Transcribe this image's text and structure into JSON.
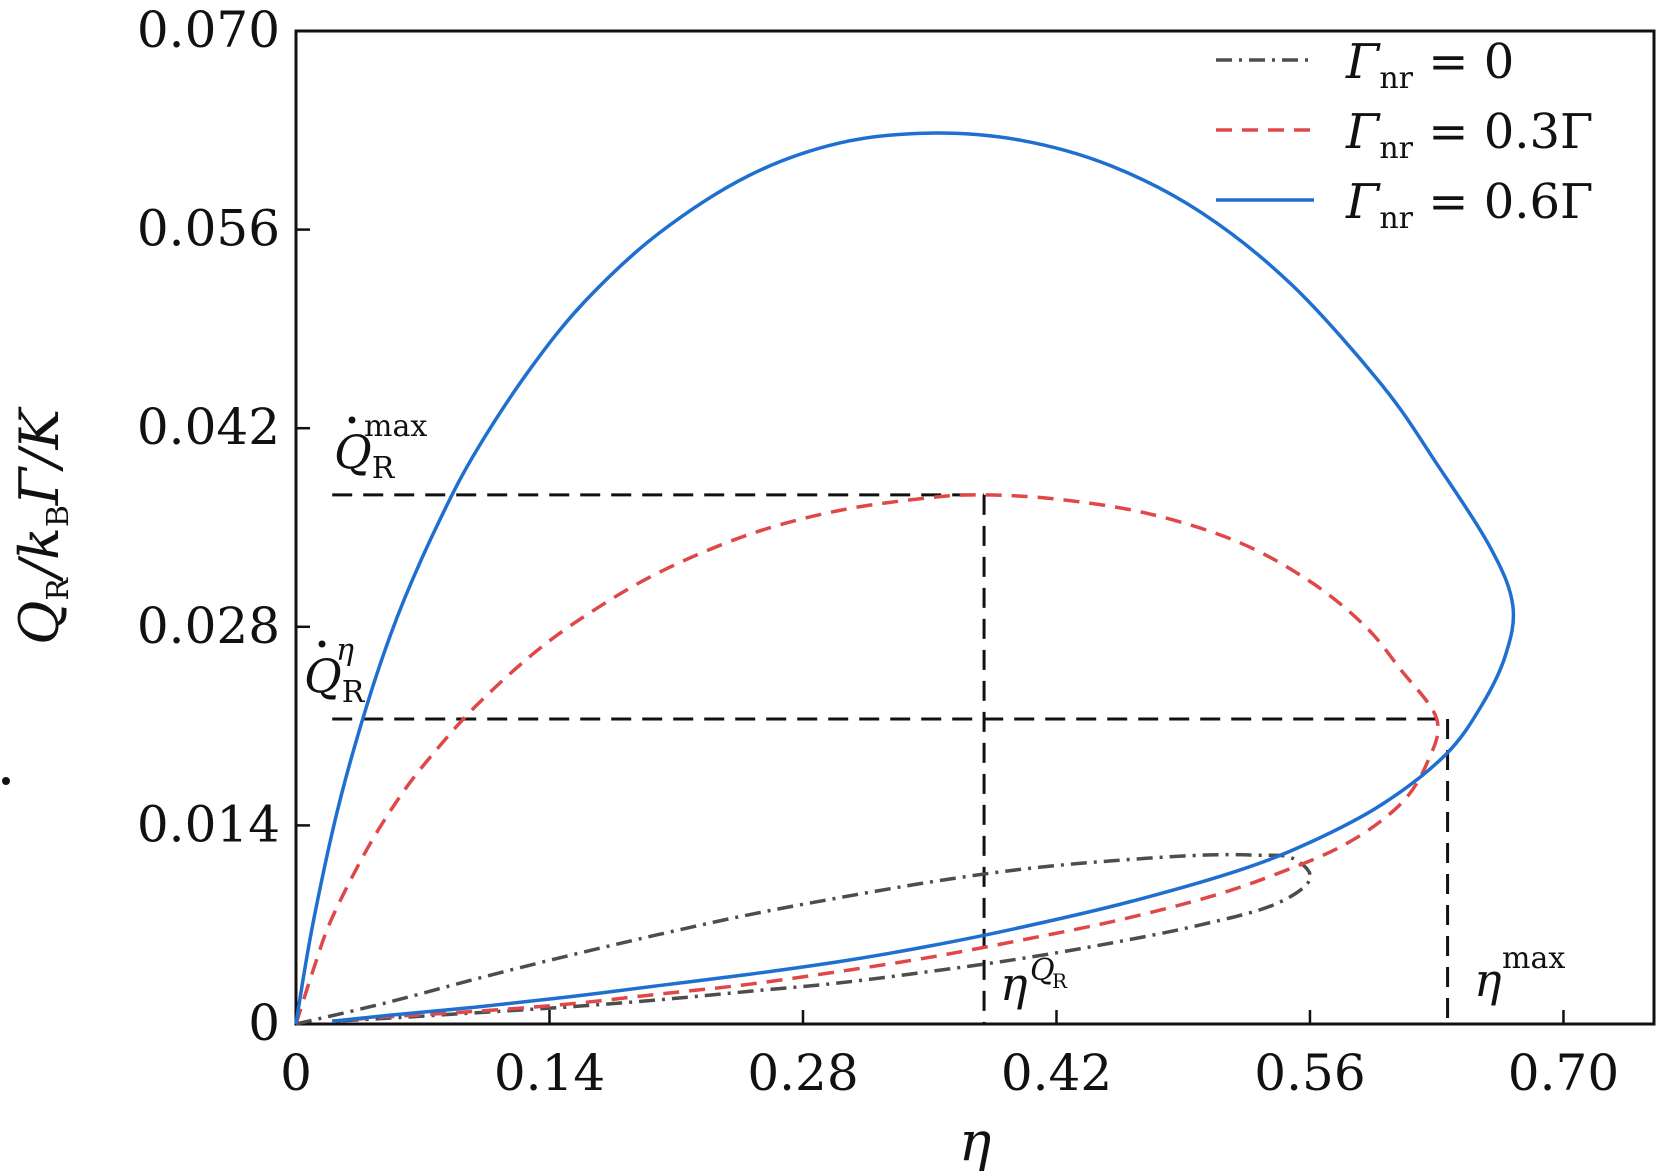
{
  "chart_data": {
    "type": "line",
    "title": "",
    "xlabel": "η",
    "ylabel": {
      "main": "Q",
      "sub": "R",
      "rest": "/k",
      "sub2": "B",
      "tail": "Γ/K"
    },
    "xlim": [
      0,
      0.75
    ],
    "ylim": [
      0,
      0.07
    ],
    "x_ticks": [
      0,
      0.14,
      0.28,
      0.42,
      0.56,
      0.7
    ],
    "x_tick_labels": [
      "0",
      "0.14",
      "0.28",
      "0.42",
      "0.56",
      "0.70"
    ],
    "y_ticks": [
      0,
      0.014,
      0.028,
      0.042,
      0.056,
      0.07
    ],
    "y_tick_labels": [
      "0",
      "0.014",
      "0.028",
      "0.042",
      "0.056",
      "0.070"
    ],
    "legend_position": "top-right",
    "series": [
      {
        "name": "Γnr = 0",
        "label": {
          "main": "Γ",
          "sub": "nr",
          "rest": " = 0"
        },
        "color": "#4d4d4d",
        "style": "dashdot",
        "points": [
          [
            0,
            0
          ],
          [
            0.05,
            0.0015
          ],
          [
            0.1,
            0.0032
          ],
          [
            0.15,
            0.0048
          ],
          [
            0.2,
            0.0063
          ],
          [
            0.25,
            0.0077
          ],
          [
            0.3,
            0.0089
          ],
          [
            0.35,
            0.01
          ],
          [
            0.4,
            0.0109
          ],
          [
            0.45,
            0.0115
          ],
          [
            0.5,
            0.0119
          ],
          [
            0.53,
            0.0119
          ],
          [
            0.55,
            0.0117
          ],
          [
            0.56,
            0.0102
          ],
          [
            0.54,
            0.0084
          ],
          [
            0.5,
            0.007
          ],
          [
            0.45,
            0.0057
          ],
          [
            0.4,
            0.0046
          ],
          [
            0.35,
            0.0037
          ],
          [
            0.3,
            0.0029
          ],
          [
            0.25,
            0.0023
          ],
          [
            0.2,
            0.0017
          ],
          [
            0.15,
            0.0012
          ],
          [
            0.1,
            0.0008
          ],
          [
            0.05,
            0.0004
          ],
          [
            0.02,
            0.0002
          ]
        ]
      },
      {
        "name": "Γnr = 0.3Γ",
        "label": {
          "main": "Γ",
          "sub": "nr",
          "rest": " = 0.3Γ"
        },
        "color": "#e04848",
        "style": "dashed",
        "points": [
          [
            0,
            0
          ],
          [
            0.01,
            0.004
          ],
          [
            0.02,
            0.0075
          ],
          [
            0.04,
            0.0125
          ],
          [
            0.06,
            0.0165
          ],
          [
            0.08,
            0.0197
          ],
          [
            0.1,
            0.0225
          ],
          [
            0.13,
            0.026
          ],
          [
            0.16,
            0.0288
          ],
          [
            0.2,
            0.0318
          ],
          [
            0.25,
            0.0345
          ],
          [
            0.3,
            0.0362
          ],
          [
            0.35,
            0.0371
          ],
          [
            0.38,
            0.0373
          ],
          [
            0.42,
            0.037
          ],
          [
            0.47,
            0.036
          ],
          [
            0.52,
            0.034
          ],
          [
            0.56,
            0.0312
          ],
          [
            0.59,
            0.0281
          ],
          [
            0.61,
            0.025
          ],
          [
            0.63,
            0.0215
          ],
          [
            0.625,
            0.0185
          ],
          [
            0.61,
            0.0155
          ],
          [
            0.58,
            0.0127
          ],
          [
            0.54,
            0.0105
          ],
          [
            0.5,
            0.0088
          ],
          [
            0.45,
            0.0072
          ],
          [
            0.4,
            0.0059
          ],
          [
            0.35,
            0.0047
          ],
          [
            0.3,
            0.0037
          ],
          [
            0.25,
            0.0028
          ],
          [
            0.2,
            0.0021
          ],
          [
            0.15,
            0.0014
          ],
          [
            0.1,
            0.0009
          ],
          [
            0.05,
            0.0005
          ],
          [
            0.02,
            0.0002
          ]
        ]
      },
      {
        "name": "Γnr = 0.6Γ",
        "label": {
          "main": "Γ",
          "sub": "nr",
          "rest": " = 0.6Γ"
        },
        "color": "#1f6fd1",
        "style": "solid",
        "points": [
          [
            0,
            0
          ],
          [
            0.005,
            0.004
          ],
          [
            0.01,
            0.0075
          ],
          [
            0.02,
            0.0135
          ],
          [
            0.03,
            0.0185
          ],
          [
            0.045,
            0.0248
          ],
          [
            0.06,
            0.03
          ],
          [
            0.08,
            0.0357
          ],
          [
            0.1,
            0.0405
          ],
          [
            0.13,
            0.0463
          ],
          [
            0.16,
            0.051
          ],
          [
            0.2,
            0.0557
          ],
          [
            0.25,
            0.0598
          ],
          [
            0.3,
            0.0621
          ],
          [
            0.35,
            0.0628
          ],
          [
            0.4,
            0.0623
          ],
          [
            0.45,
            0.0605
          ],
          [
            0.5,
            0.0572
          ],
          [
            0.55,
            0.0521
          ],
          [
            0.6,
            0.045
          ],
          [
            0.63,
            0.0395
          ],
          [
            0.66,
            0.0335
          ],
          [
            0.672,
            0.0295
          ],
          [
            0.668,
            0.026
          ],
          [
            0.655,
            0.0225
          ],
          [
            0.635,
            0.019
          ],
          [
            0.6,
            0.0155
          ],
          [
            0.56,
            0.0128
          ],
          [
            0.52,
            0.0108
          ],
          [
            0.46,
            0.0086
          ],
          [
            0.4,
            0.0068
          ],
          [
            0.35,
            0.0055
          ],
          [
            0.3,
            0.0044
          ],
          [
            0.25,
            0.0035
          ],
          [
            0.2,
            0.0027
          ],
          [
            0.15,
            0.0019
          ],
          [
            0.1,
            0.0012
          ],
          [
            0.05,
            0.0006
          ],
          [
            0.02,
            0.0002
          ]
        ]
      }
    ],
    "reference_lines": {
      "q_max_y": 0.0373,
      "q_max_x": 0.38,
      "q_eta_y": 0.0215,
      "eta_max_x": 0.636
    },
    "annotations": {
      "q_max": {
        "main": "Q",
        "sub": "R",
        "sup": "max"
      },
      "q_eta": {
        "main": "Q",
        "sub": "R",
        "sup": "η"
      },
      "eta_q": {
        "main": "η",
        "sup": "Q",
        "subsup": "R"
      },
      "eta_max": {
        "main": "η",
        "sup": "max"
      }
    }
  }
}
